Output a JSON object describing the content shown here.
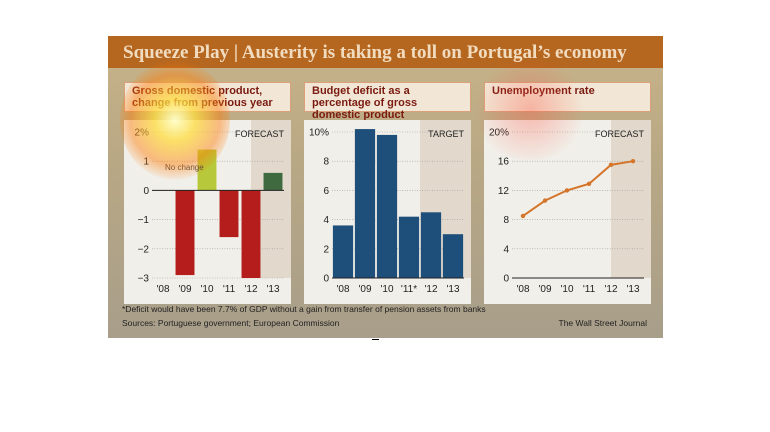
{
  "banner": {
    "title": "Squeeze Play",
    "separator": "|",
    "subtitle": "Austerity is taking a toll on Portugal’s economy"
  },
  "footnote": "*Deficit would have been 7.7% of GDP without a gain from transfer of pension assets from banks",
  "sources": "Sources: Portuguese government; European Commission",
  "credit": "The Wall Street Journal",
  "colors": {
    "banner": "#b5661f",
    "gdp_bar": "#b51c1c",
    "gdp_forecast_bar": "#3f6a3f",
    "gdp_highlight_bar": "#b7c93a",
    "deficit_bar": "#1d4f7a",
    "unemployment_line": "#d4752a",
    "shade": "#e2d9cc"
  },
  "chart_data": [
    {
      "type": "bar",
      "title": "Gross domestic product, change from previous year",
      "categories": [
        "'08",
        "'09",
        "'10",
        "'11",
        "'12",
        "'13"
      ],
      "values": [
        0,
        -2.9,
        1.4,
        -1.6,
        -3.0,
        0.6
      ],
      "ylim": [
        -3,
        2
      ],
      "yticks": [
        "2%",
        "1",
        "0",
        "−1",
        "−2",
        "−3"
      ],
      "annotations": [
        "No change",
        "FORECAST"
      ],
      "forecast_from": "'12",
      "grid": true
    },
    {
      "type": "bar",
      "title": "Budget deficit as a percentage of gross domestic product",
      "categories": [
        "'08",
        "'09",
        "'10",
        "'11*",
        "'12",
        "'13"
      ],
      "values": [
        3.6,
        10.2,
        9.8,
        4.2,
        4.5,
        3.0
      ],
      "ylim": [
        0,
        10
      ],
      "yticks": [
        "10%",
        "8",
        "6",
        "4",
        "2",
        "0"
      ],
      "annotations": [
        "TARGET"
      ],
      "target_from": "'12",
      "grid": true
    },
    {
      "type": "line",
      "title": "Unemployment rate",
      "categories": [
        "'08",
        "'09",
        "'10",
        "'11",
        "'12",
        "'13"
      ],
      "values": [
        8.5,
        10.6,
        12.0,
        12.9,
        15.5,
        16.0
      ],
      "ylim": [
        0,
        20
      ],
      "yticks": [
        "20%",
        "16",
        "12",
        "8",
        "4",
        "0"
      ],
      "annotations": [
        "FORECAST"
      ],
      "forecast_from": "'12",
      "grid": true
    }
  ]
}
